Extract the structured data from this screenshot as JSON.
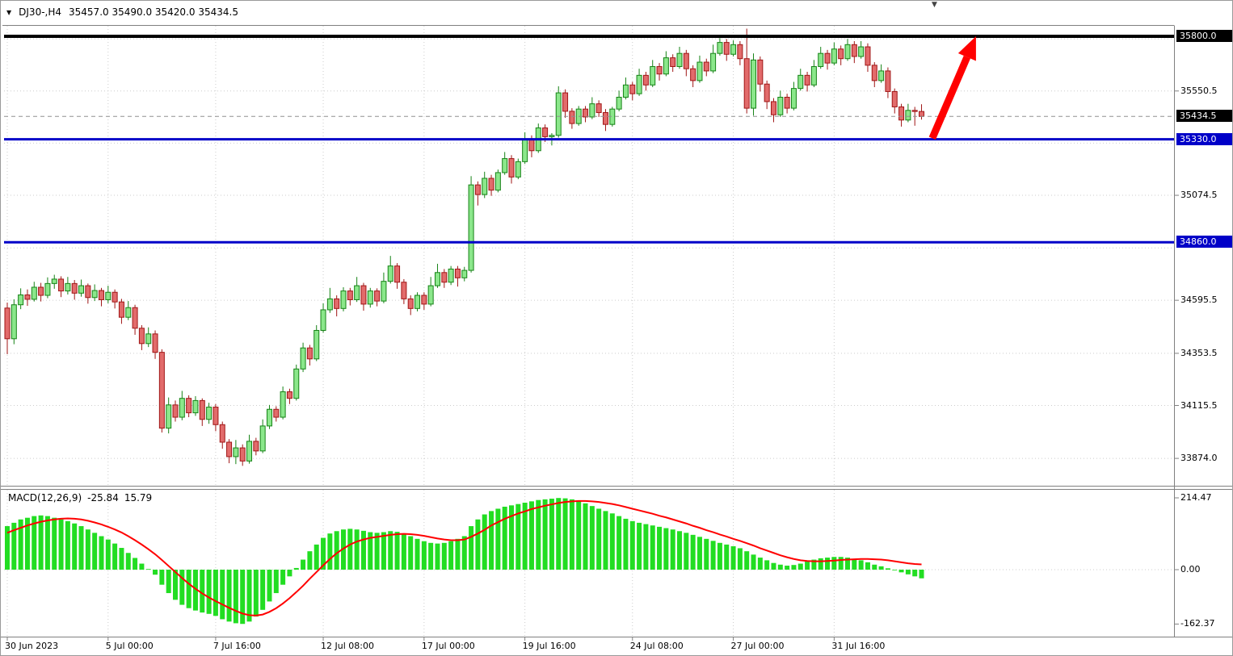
{
  "header": {
    "dropdown_icon": "▼",
    "symbol": "DJ30-,H4",
    "ohlc": "35457.0 35490.0 35420.0 35434.5"
  },
  "top_marker": "▼",
  "indicator": {
    "name": "MACD(12,26,9)",
    "value_main": "-25.84",
    "value_signal": "15.79"
  },
  "price_axis": {
    "ticks": [
      {
        "label": "35550.5",
        "price": 35550.5
      },
      {
        "label": "35074.5",
        "price": 35074.5
      },
      {
        "label": "34595.5",
        "price": 34595.5
      },
      {
        "label": "34353.5",
        "price": 34353.5
      },
      {
        "label": "34115.5",
        "price": 34115.5
      },
      {
        "label": "33874.0",
        "price": 33874.0
      }
    ],
    "level_labels": [
      {
        "label": "35800.0",
        "price": 35800.0,
        "bg": "#000000"
      },
      {
        "label": "35434.5",
        "price": 35434.5,
        "bg": "#000000"
      },
      {
        "label": "35330.0",
        "price": 35330.0,
        "bg": "#0000C8"
      },
      {
        "label": "34860.0",
        "price": 34860.0,
        "bg": "#0000C8"
      }
    ]
  },
  "macd_axis": {
    "ticks": [
      {
        "label": "214.47",
        "value": 214.47
      },
      {
        "label": "0.00",
        "value": 0.0
      },
      {
        "label": "-162.37",
        "value": -162.37
      }
    ]
  },
  "time_axis": {
    "labels": [
      {
        "text": "30 Jun 2023",
        "bar": 0
      },
      {
        "text": "5 Jul 00:00",
        "bar": 15
      },
      {
        "text": "7 Jul 16:00",
        "bar": 31
      },
      {
        "text": "12 Jul 08:00",
        "bar": 47
      },
      {
        "text": "17 Jul 00:00",
        "bar": 62
      },
      {
        "text": "19 Jul 16:00",
        "bar": 77
      },
      {
        "text": "24 Jul 08:00",
        "bar": 93
      },
      {
        "text": "27 Jul 00:00",
        "bar": 108
      },
      {
        "text": "31 Jul 16:00",
        "bar": 123
      }
    ]
  },
  "grid": {
    "color": "#CCCCCC",
    "h_prices": [
      35788.5,
      35550.5,
      35312.5,
      35074.5,
      34834.5,
      34595.5,
      34353.5,
      34115.5,
      33874.0
    ],
    "v_bars": [
      0,
      15,
      31,
      47,
      62,
      77,
      93,
      108,
      123
    ]
  },
  "colors": {
    "bull_fill": "#8BE78B",
    "bull_stroke": "#168316",
    "bear_fill": "#E26B6B",
    "bear_stroke": "#A01616",
    "macd_hist": "#22DD22",
    "macd_signal": "#FF0000",
    "frame": "#808080",
    "bg": "#FFFFFF",
    "support_line": "#0000C8",
    "resistance_line": "#000000",
    "arrow": "#FF0000"
  },
  "chart_data": {
    "type": "candlestick",
    "title": "DJ30-,H4",
    "symbol": "DJ30-",
    "timeframe": "H4",
    "last_ohlc": {
      "open": 35457.0,
      "high": 35490.0,
      "low": 35420.0,
      "close": 35434.5
    },
    "ylim": [
      33800,
      35860
    ],
    "x_tick_labels": [
      "30 Jun 2023",
      "5 Jul 00:00",
      "7 Jul 16:00",
      "12 Jul 08:00",
      "17 Jul 00:00",
      "19 Jul 16:00",
      "24 Jul 08:00",
      "27 Jul 00:00",
      "31 Jul 16:00"
    ],
    "key_levels": {
      "resistance": 35800.0,
      "support": 35330.0,
      "support2": 34860.0,
      "current_bid": 35434.5
    },
    "candles": [
      [
        34560,
        34585,
        34350,
        34420
      ],
      [
        34420,
        34600,
        34395,
        34575
      ],
      [
        34575,
        34650,
        34555,
        34620
      ],
      [
        34620,
        34645,
        34570,
        34600
      ],
      [
        34600,
        34680,
        34590,
        34655
      ],
      [
        34655,
        34675,
        34590,
        34618
      ],
      [
        34618,
        34700,
        34605,
        34672
      ],
      [
        34672,
        34712,
        34648,
        34692
      ],
      [
        34692,
        34705,
        34610,
        34638
      ],
      [
        34638,
        34702,
        34622,
        34672
      ],
      [
        34672,
        34688,
        34598,
        34628
      ],
      [
        34628,
        34690,
        34612,
        34662
      ],
      [
        34662,
        34672,
        34580,
        34608
      ],
      [
        34608,
        34668,
        34592,
        34640
      ],
      [
        34640,
        34652,
        34568,
        34598
      ],
      [
        34598,
        34662,
        34582,
        34632
      ],
      [
        34632,
        34645,
        34558,
        34588
      ],
      [
        34588,
        34602,
        34488,
        34518
      ],
      [
        34518,
        34592,
        34505,
        34562
      ],
      [
        34562,
        34575,
        34438,
        34468
      ],
      [
        34468,
        34482,
        34368,
        34398
      ],
      [
        34398,
        34472,
        34382,
        34442
      ],
      [
        34442,
        34458,
        34328,
        34358
      ],
      [
        34358,
        34372,
        33992,
        34012
      ],
      [
        34012,
        34152,
        33988,
        34118
      ],
      [
        34118,
        34138,
        34042,
        34062
      ],
      [
        34062,
        34182,
        34048,
        34148
      ],
      [
        34148,
        34162,
        34062,
        34082
      ],
      [
        34082,
        34158,
        34068,
        34138
      ],
      [
        34138,
        34148,
        34022,
        34052
      ],
      [
        34052,
        34128,
        34032,
        34108
      ],
      [
        34108,
        34122,
        33998,
        34028
      ],
      [
        34028,
        34042,
        33918,
        33948
      ],
      [
        33948,
        33962,
        33852,
        33882
      ],
      [
        33882,
        33958,
        33848,
        33922
      ],
      [
        33922,
        33938,
        33840,
        33862
      ],
      [
        33862,
        33982,
        33850,
        33952
      ],
      [
        33952,
        33968,
        33888,
        33908
      ],
      [
        33908,
        34052,
        33898,
        34022
      ],
      [
        34022,
        34118,
        34008,
        34098
      ],
      [
        34098,
        34112,
        34042,
        34062
      ],
      [
        34062,
        34202,
        34052,
        34178
      ],
      [
        34178,
        34192,
        34122,
        34148
      ],
      [
        34148,
        34302,
        34138,
        34282
      ],
      [
        34282,
        34402,
        34268,
        34378
      ],
      [
        34378,
        34392,
        34298,
        34328
      ],
      [
        34328,
        34482,
        34318,
        34458
      ],
      [
        34458,
        34582,
        34448,
        34552
      ],
      [
        34552,
        34652,
        34538,
        34602
      ],
      [
        34602,
        34618,
        34522,
        34558
      ],
      [
        34558,
        34655,
        34545,
        34638
      ],
      [
        34638,
        34652,
        34572,
        34598
      ],
      [
        34598,
        34702,
        34588,
        34662
      ],
      [
        34662,
        34675,
        34548,
        34578
      ],
      [
        34578,
        34652,
        34562,
        34638
      ],
      [
        34638,
        34650,
        34568,
        34592
      ],
      [
        34592,
        34722,
        34582,
        34682
      ],
      [
        34682,
        34798,
        34672,
        34752
      ],
      [
        34752,
        34765,
        34648,
        34678
      ],
      [
        34678,
        34692,
        34578,
        34602
      ],
      [
        34602,
        34618,
        34528,
        34558
      ],
      [
        34558,
        34632,
        34545,
        34618
      ],
      [
        34618,
        34632,
        34552,
        34578
      ],
      [
        34578,
        34702,
        34568,
        34662
      ],
      [
        34662,
        34762,
        34652,
        34722
      ],
      [
        34722,
        34738,
        34652,
        34678
      ],
      [
        34678,
        34752,
        34665,
        34738
      ],
      [
        34738,
        34752,
        34658,
        34698
      ],
      [
        34698,
        34748,
        34682,
        34732
      ],
      [
        34732,
        35162,
        34722,
        35122
      ],
      [
        35122,
        35138,
        35028,
        35078
      ],
      [
        35078,
        35182,
        35062,
        35152
      ],
      [
        35152,
        35168,
        35072,
        35098
      ],
      [
        35098,
        35192,
        35088,
        35178
      ],
      [
        35178,
        35272,
        35168,
        35242
      ],
      [
        35242,
        35258,
        35128,
        35158
      ],
      [
        35158,
        35242,
        35148,
        35228
      ],
      [
        35228,
        35362,
        35218,
        35332
      ],
      [
        35332,
        35348,
        35248,
        35278
      ],
      [
        35278,
        35402,
        35268,
        35382
      ],
      [
        35382,
        35398,
        35318,
        35342
      ],
      [
        35342,
        35358,
        35302,
        35348
      ],
      [
        35348,
        35572,
        35338,
        35542
      ],
      [
        35542,
        35558,
        35428,
        35458
      ],
      [
        35458,
        35472,
        35378,
        35402
      ],
      [
        35402,
        35482,
        35392,
        35468
      ],
      [
        35468,
        35482,
        35408,
        35432
      ],
      [
        35432,
        35522,
        35422,
        35492
      ],
      [
        35492,
        35508,
        35432,
        35452
      ],
      [
        35452,
        35468,
        35368,
        35398
      ],
      [
        35398,
        35478,
        35388,
        35468
      ],
      [
        35468,
        35552,
        35458,
        35522
      ],
      [
        35522,
        35612,
        35512,
        35578
      ],
      [
        35578,
        35592,
        35508,
        35538
      ],
      [
        35538,
        35652,
        35528,
        35622
      ],
      [
        35622,
        35638,
        35552,
        35578
      ],
      [
        35578,
        35692,
        35568,
        35662
      ],
      [
        35662,
        35678,
        35598,
        35628
      ],
      [
        35628,
        35732,
        35618,
        35702
      ],
      [
        35702,
        35718,
        35638,
        35662
      ],
      [
        35662,
        35752,
        35652,
        35722
      ],
      [
        35722,
        35738,
        35618,
        35652
      ],
      [
        35652,
        35668,
        35568,
        35598
      ],
      [
        35598,
        35712,
        35588,
        35682
      ],
      [
        35682,
        35698,
        35618,
        35642
      ],
      [
        35642,
        35762,
        35632,
        35722
      ],
      [
        35722,
        35792,
        35712,
        35772
      ],
      [
        35772,
        35788,
        35688,
        35718
      ],
      [
        35718,
        35782,
        35708,
        35762
      ],
      [
        35762,
        35778,
        35668,
        35698
      ],
      [
        35698,
        35835,
        35448,
        35472
      ],
      [
        35472,
        35722,
        35438,
        35692
      ],
      [
        35692,
        35708,
        35548,
        35582
      ],
      [
        35582,
        35598,
        35468,
        35502
      ],
      [
        35502,
        35518,
        35408,
        35442
      ],
      [
        35442,
        35552,
        35432,
        35522
      ],
      [
        35522,
        35538,
        35448,
        35472
      ],
      [
        35472,
        35592,
        35462,
        35562
      ],
      [
        35562,
        35652,
        35552,
        35622
      ],
      [
        35622,
        35638,
        35548,
        35578
      ],
      [
        35578,
        35692,
        35568,
        35662
      ],
      [
        35662,
        35752,
        35652,
        35722
      ],
      [
        35722,
        35738,
        35648,
        35678
      ],
      [
        35678,
        35772,
        35668,
        35742
      ],
      [
        35742,
        35758,
        35668,
        35698
      ],
      [
        35698,
        35788,
        35688,
        35762
      ],
      [
        35762,
        35778,
        35678,
        35708
      ],
      [
        35708,
        35778,
        35698,
        35752
      ],
      [
        35752,
        35768,
        35638,
        35668
      ],
      [
        35668,
        35682,
        35568,
        35598
      ],
      [
        35598,
        35672,
        35588,
        35642
      ],
      [
        35642,
        35658,
        35518,
        35548
      ],
      [
        35548,
        35562,
        35448,
        35478
      ],
      [
        35478,
        35492,
        35388,
        35418
      ],
      [
        35418,
        35492,
        35408,
        35462
      ],
      [
        35462,
        35478,
        35392,
        35457
      ],
      [
        35457,
        35490,
        35420,
        35434.5
      ]
    ],
    "macd": {
      "params": "12,26,9",
      "last_macd": -25.84,
      "last_signal": 15.79,
      "axis_range": [
        -162.37,
        214.47
      ],
      "histogram": [
        130,
        140,
        150,
        155,
        160,
        162,
        160,
        155,
        150,
        145,
        138,
        130,
        120,
        110,
        100,
        90,
        78,
        65,
        50,
        35,
        18,
        2,
        -15,
        -45,
        -70,
        -90,
        -105,
        -115,
        -122,
        -128,
        -132,
        -138,
        -148,
        -155,
        -160,
        -162,
        -155,
        -140,
        -120,
        -95,
        -70,
        -45,
        -20,
        5,
        30,
        55,
        75,
        95,
        108,
        115,
        120,
        122,
        120,
        116,
        112,
        110,
        112,
        115,
        113,
        108,
        100,
        92,
        85,
        80,
        78,
        80,
        85,
        92,
        100,
        130,
        150,
        165,
        175,
        182,
        188,
        192,
        196,
        200,
        204,
        208,
        210,
        212,
        214,
        213,
        210,
        205,
        198,
        190,
        182,
        175,
        168,
        160,
        152,
        145,
        140,
        136,
        132,
        128,
        124,
        120,
        115,
        110,
        104,
        98,
        92,
        86,
        80,
        75,
        70,
        64,
        55,
        45,
        36,
        28,
        20,
        15,
        12,
        14,
        18,
        24,
        30,
        34,
        36,
        38,
        38,
        36,
        32,
        28,
        22,
        15,
        10,
        4,
        -2,
        -8,
        -14,
        -20,
        -25.84
      ],
      "signal": [
        110,
        118,
        125,
        132,
        138,
        143,
        147,
        150,
        152,
        153,
        152,
        150,
        146,
        141,
        135,
        128,
        120,
        111,
        100,
        88,
        75,
        61,
        46,
        29,
        11,
        -7,
        -25,
        -42,
        -57,
        -71,
        -83,
        -94,
        -104,
        -114,
        -123,
        -131,
        -136,
        -137,
        -134,
        -126,
        -115,
        -101,
        -85,
        -67,
        -48,
        -27,
        -7,
        13,
        32,
        49,
        63,
        75,
        84,
        90,
        95,
        98,
        101,
        104,
        106,
        107,
        106,
        104,
        101,
        97,
        93,
        90,
        88,
        88,
        90,
        98,
        108,
        119,
        132,
        142,
        152,
        160,
        168,
        174,
        181,
        186,
        191,
        195,
        199,
        202,
        204,
        205,
        205,
        204,
        202,
        199,
        196,
        192,
        187,
        182,
        177,
        172,
        167,
        161,
        156,
        150,
        144,
        138,
        131,
        125,
        118,
        112,
        105,
        99,
        92,
        86,
        79,
        72,
        64,
        57,
        50,
        43,
        37,
        32,
        28,
        26,
        25,
        25,
        26,
        27,
        29,
        30,
        31,
        32,
        32,
        31,
        30,
        28,
        25,
        22,
        19,
        17,
        15.79
      ]
    },
    "annotations": {
      "levels": [
        {
          "price": 35800.0,
          "color": "#000000",
          "width": 4,
          "style": "solid",
          "label": "35800.0"
        },
        {
          "price": 35330.0,
          "color": "#0000C8",
          "width": 3,
          "style": "solid",
          "label": "35330.0"
        },
        {
          "price": 34860.0,
          "color": "#0000C8",
          "width": 3,
          "style": "solid",
          "label": "34860.0"
        },
        {
          "price": 35434.5,
          "color": "#909090",
          "width": 1,
          "style": "dashed",
          "label": "35434.5"
        }
      ],
      "arrow": {
        "tail": {
          "bar": 137.6,
          "price": 35335
        },
        "tip": {
          "bar": 144.1,
          "price": 35800
        },
        "color": "#FF0000",
        "meaning": "projected-move-up-to-resistance"
      }
    }
  }
}
